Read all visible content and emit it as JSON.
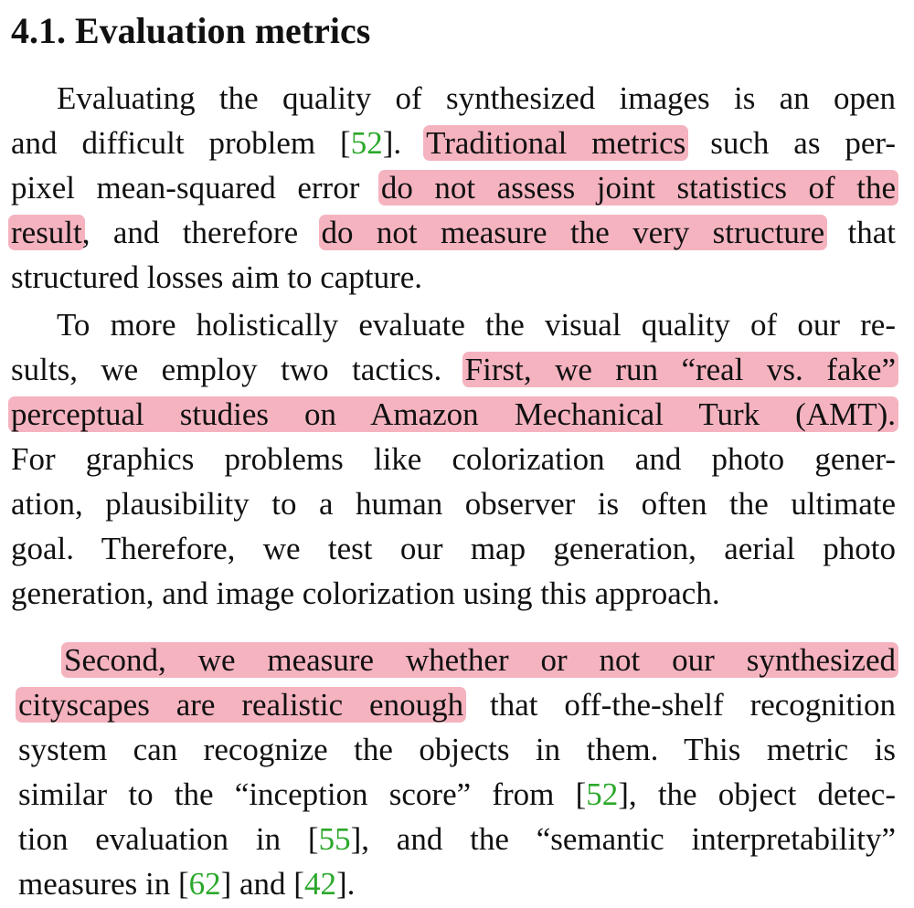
{
  "section": {
    "heading": "4.1. Evaluation metrics"
  },
  "paragraphs": [
    {
      "lines": [
        {
          "style": "j",
          "indent": true,
          "segments": [
            {
              "t": "Evaluating the quality of synthesized images is an open"
            }
          ]
        },
        {
          "style": "j",
          "segments": [
            {
              "t": "and difficult problem ["
            },
            {
              "t": "52",
              "cite": true
            },
            {
              "t": "]. "
            },
            {
              "t": "Traditional metrics",
              "hl": true
            },
            {
              "t": " such as per-"
            }
          ]
        },
        {
          "style": "j",
          "segments": [
            {
              "t": "pixel mean-squared error "
            },
            {
              "t": "do not assess joint statistics of the",
              "hl": true
            }
          ]
        },
        {
          "style": "j",
          "segments": [
            {
              "t": "result",
              "hl": true
            },
            {
              "t": ", and therefore "
            },
            {
              "t": "do not measure the very structure",
              "hl": true
            },
            {
              "t": " that"
            }
          ]
        },
        {
          "style": "l",
          "segments": [
            {
              "t": "structured losses aim to capture."
            }
          ]
        }
      ]
    },
    {
      "lines": [
        {
          "style": "j",
          "indent": true,
          "segments": [
            {
              "t": "To more holistically evaluate the visual quality of our re-"
            }
          ]
        },
        {
          "style": "j",
          "segments": [
            {
              "t": "sults, we employ two tactics. "
            },
            {
              "t": "First, we run “real vs. fake”",
              "hl": true
            }
          ]
        },
        {
          "style": "j",
          "segments": [
            {
              "t": "perceptual studies on Amazon Mechanical Turk (AMT).",
              "hl": true
            }
          ]
        },
        {
          "style": "j",
          "segments": [
            {
              "t": "For graphics problems like colorization and photo gener-"
            }
          ]
        },
        {
          "style": "j",
          "segments": [
            {
              "t": "ation, plausibility to a human observer is often the ultimate"
            }
          ]
        },
        {
          "style": "j",
          "segments": [
            {
              "t": "goal. Therefore, we test our map generation, aerial photo"
            }
          ]
        },
        {
          "style": "l",
          "segments": [
            {
              "t": "generation, and image colorization using this approach."
            }
          ]
        }
      ]
    },
    {
      "lines": [
        {
          "style": "j",
          "indent": true,
          "segments": [
            {
              "t": "Second, we measure whether or not our synthesized",
              "hl": true
            }
          ]
        },
        {
          "style": "j",
          "segments": [
            {
              "t": "cityscapes are realistic enough",
              "hl": true
            },
            {
              "t": " that off-the-shelf recognition"
            }
          ]
        },
        {
          "style": "j",
          "segments": [
            {
              "t": "system can recognize the objects in them. This metric is"
            }
          ]
        },
        {
          "style": "j",
          "segments": [
            {
              "t": "similar to the “inception score” from ["
            },
            {
              "t": "52",
              "cite": true
            },
            {
              "t": "], the object detec-"
            }
          ]
        },
        {
          "style": "j",
          "segments": [
            {
              "t": "tion evaluation in ["
            },
            {
              "t": "55",
              "cite": true
            },
            {
              "t": "], and the “semantic interpretability”"
            }
          ]
        },
        {
          "style": "l",
          "segments": [
            {
              "t": "measures in ["
            },
            {
              "t": "62",
              "cite": true
            },
            {
              "t": "] and ["
            },
            {
              "t": "42",
              "cite": true
            },
            {
              "t": "]."
            }
          ]
        }
      ]
    }
  ]
}
